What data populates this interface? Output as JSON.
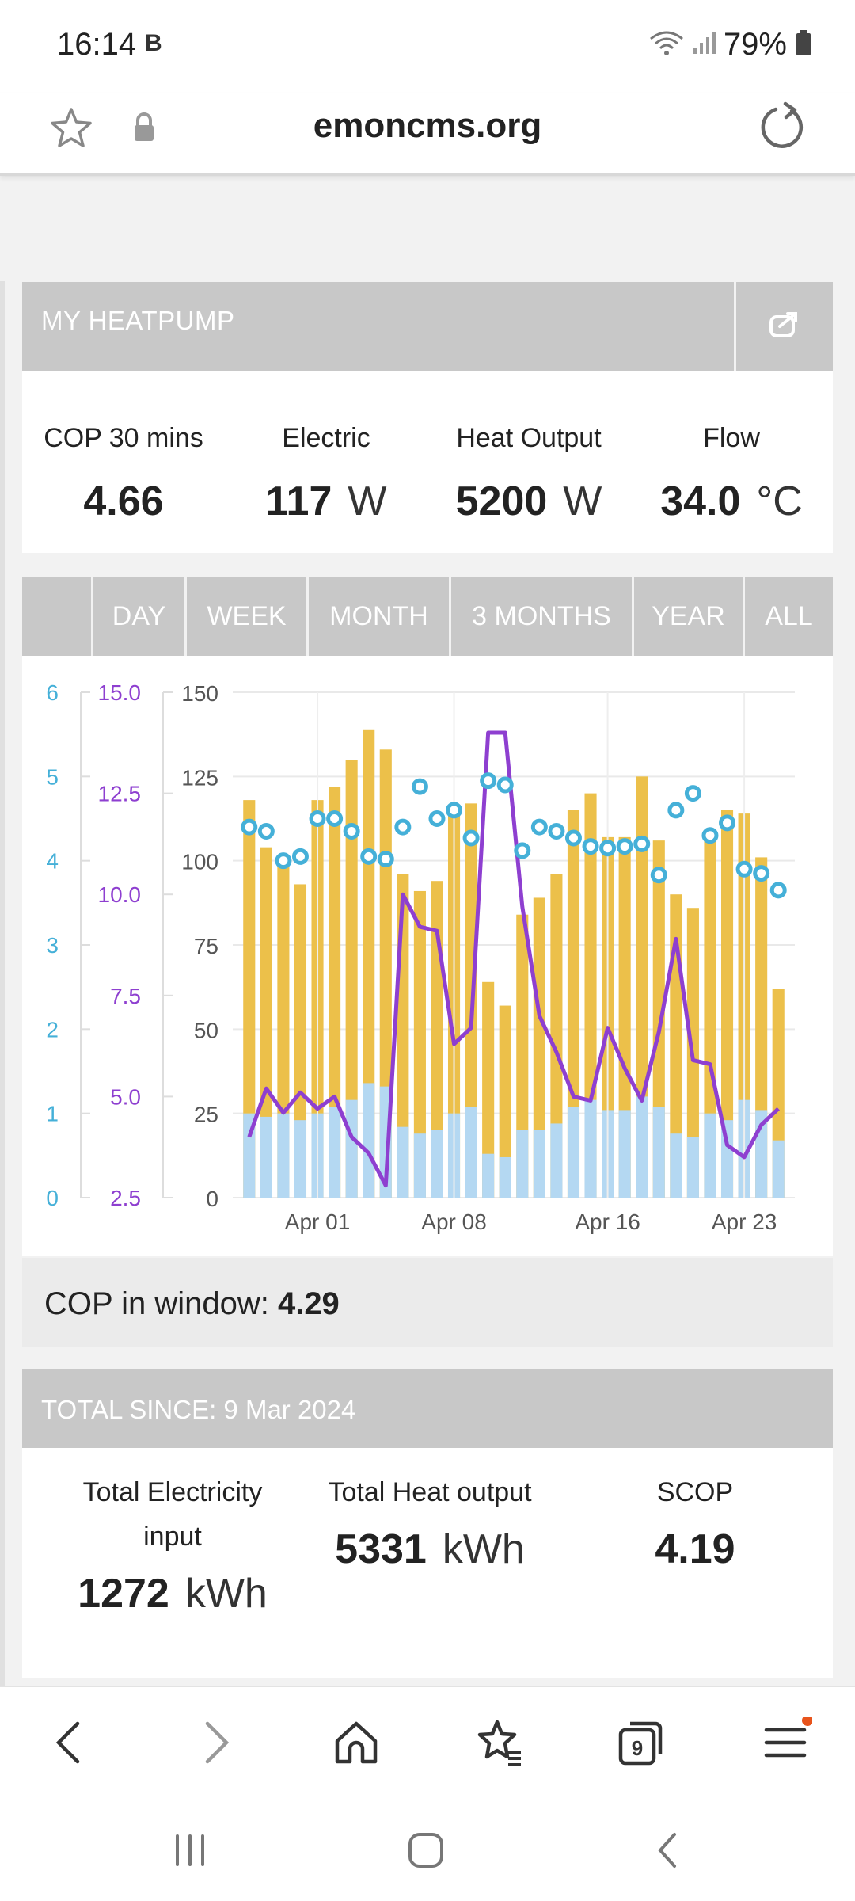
{
  "status": {
    "time": "16:14",
    "indicator": "B",
    "battery": "79%"
  },
  "browser": {
    "url": "emoncms.org"
  },
  "panel": {
    "title": "MY HEATPUMP"
  },
  "stats": [
    {
      "label": "COP 30 mins",
      "value": "4.66",
      "unit": ""
    },
    {
      "label": "Electric",
      "value": "117",
      "unit": "W"
    },
    {
      "label": "Heat Output",
      "value": "5200",
      "unit": "W"
    },
    {
      "label": "Flow",
      "value": "34.0",
      "unit": "°C"
    }
  ],
  "tabs": [
    "DAY",
    "WEEK",
    "MONTH",
    "3 MONTHS",
    "YEAR",
    "ALL"
  ],
  "cop_window": {
    "label": "COP in window:",
    "value": "4.29"
  },
  "total": {
    "title": "TOTAL SINCE: 9 Mar 2024",
    "electricity_label_1": "Total Electricity",
    "electricity_label_2": "input",
    "electricity_value": "1272",
    "electricity_unit": "kWh",
    "heat_label": "Total Heat output",
    "heat_value": "5331",
    "heat_unit": "kWh",
    "scop_label": "SCOP",
    "scop_value": "4.19"
  },
  "chart_data": {
    "type": "bar",
    "x_ticks": [
      "Apr 01",
      "Apr 08",
      "Apr 16",
      "Apr 23"
    ],
    "axes": {
      "cop": {
        "ticks": [
          "0",
          "1",
          "2",
          "3",
          "4",
          "5",
          "6"
        ],
        "range": [
          0,
          6
        ],
        "color": "#45b0d8"
      },
      "temp": {
        "ticks": [
          "2.5",
          "5.0",
          "7.5",
          "10.0",
          "12.5",
          "15.0"
        ],
        "range": [
          2.5,
          15
        ],
        "color": "#8e3fd0"
      },
      "kwh": {
        "ticks": [
          "0",
          "25",
          "50",
          "75",
          "100",
          "125",
          "150"
        ],
        "range": [
          0,
          150
        ],
        "color": "#555555"
      }
    },
    "colors": {
      "heat": "#ecc04a",
      "elec": "#b4d8f2",
      "cop": "#45b0d8",
      "temp": "#8e3fd0"
    },
    "heat_kwh": [
      118,
      104,
      101,
      93,
      118,
      122,
      130,
      139,
      133,
      96,
      91,
      94,
      116,
      117,
      64,
      57,
      84,
      89,
      96,
      115,
      120,
      107,
      107,
      125,
      106,
      90,
      86,
      108,
      115,
      114,
      101,
      62
    ],
    "elec_kwh": [
      25,
      24,
      25,
      23,
      25,
      27,
      29,
      34,
      33,
      21,
      19,
      20,
      25,
      27,
      13,
      12,
      20,
      20,
      22,
      27,
      29,
      26,
      26,
      30,
      27,
      19,
      18,
      25,
      23,
      29,
      26,
      17
    ],
    "cop": [
      4.4,
      4.35,
      4.0,
      4.05,
      4.5,
      4.5,
      4.35,
      4.05,
      4.02,
      4.4,
      4.88,
      4.5,
      4.6,
      4.27,
      4.95,
      4.9,
      4.12,
      4.4,
      4.35,
      4.27,
      4.17,
      4.15,
      4.17,
      4.2,
      3.83,
      4.6,
      4.8,
      4.3,
      4.45,
      3.9,
      3.85,
      3.65
    ],
    "temp": [
      4.0,
      5.2,
      4.6,
      5.1,
      4.7,
      5.0,
      4.0,
      3.6,
      2.8,
      10.0,
      9.2,
      9.1,
      6.3,
      6.7,
      14.0,
      14.0,
      9.7,
      7.0,
      6.1,
      5.0,
      4.9,
      6.7,
      5.7,
      4.9,
      6.6,
      8.9,
      5.9,
      5.8,
      3.8,
      3.5,
      4.3,
      4.7
    ]
  }
}
